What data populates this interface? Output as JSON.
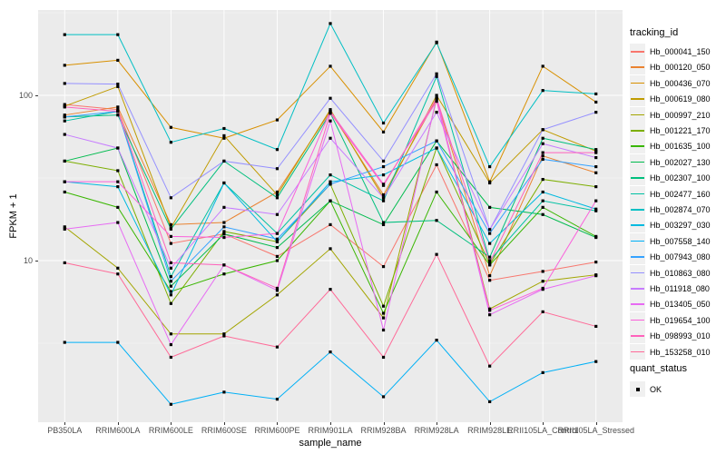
{
  "figure": {
    "background": "#FFFFFF",
    "panel_background": "#EBEBEB",
    "major_grid_color": "#FFFFFF",
    "minor_grid_color": "#F5F5F5",
    "point_color": "#000000",
    "axis_text_color": "#4D4D4D"
  },
  "y_axis": {
    "label": "FPKM + 1",
    "scale": "log10",
    "ticks": [
      {
        "label": "100",
        "value": 100
      },
      {
        "label": "10",
        "value": 10
      }
    ],
    "minor_breaks": [
      316.23,
      31.62,
      3.162
    ]
  },
  "x_axis": {
    "label": "sample_name"
  },
  "legend": {
    "tracking_title": "tracking_id",
    "quant_title": "quant_status",
    "quant_items": [
      {
        "label": "OK",
        "marker": "black-square"
      }
    ]
  },
  "chart_data": {
    "type": "line",
    "title": "",
    "xlabel": "sample_name",
    "ylabel": "FPKM + 1",
    "y_scale": "log10",
    "ylim": [
      1.05,
      324
    ],
    "grid": true,
    "legend_position": "right",
    "point_marker": "black-square",
    "categories": [
      "PB350LA",
      "RRIM600LA",
      "RRIM600LE",
      "RRIM600SE",
      "RRIM600PE",
      "RRIM901LA",
      "RRIM928BA",
      "RRIM928LA",
      "RRIM928LE",
      "RRII105LA_Control",
      "RRII105LA_Stressed"
    ],
    "series": [
      {
        "name": "Hb_000041_150",
        "color": "#F8766D",
        "values": [
          88,
          82,
          12.7,
          14.5,
          10.6,
          16.5,
          9.2,
          38,
          7.6,
          8.6,
          9.8
        ]
      },
      {
        "name": "Hb_000120_050",
        "color": "#EA8331",
        "values": [
          76,
          85,
          16.5,
          17,
          26,
          80,
          25,
          95,
          8.1,
          43,
          34
        ]
      },
      {
        "name": "Hb_000436_070",
        "color": "#D89000",
        "values": [
          152,
          163,
          64,
          55,
          71,
          150,
          60,
          210,
          30,
          150,
          91
        ]
      },
      {
        "name": "Hb_000619_080",
        "color": "#C09B00",
        "values": [
          86,
          113,
          15.8,
          57,
          25,
          82,
          24,
          100,
          29.5,
          62,
          46
        ]
      },
      {
        "name": "Hb_000997_210",
        "color": "#A3A500",
        "values": [
          16,
          9,
          3.6,
          3.6,
          6.2,
          11.8,
          4.5,
          95,
          5.1,
          7.5,
          8.2
        ]
      },
      {
        "name": "Hb_001221_170",
        "color": "#7CAE00",
        "values": [
          40,
          35,
          5.5,
          15,
          13,
          29,
          5.3,
          48,
          9.5,
          31,
          28
        ]
      },
      {
        "name": "Hb_001635_100",
        "color": "#39B600",
        "values": [
          26,
          21,
          6.5,
          8.3,
          10,
          23,
          4.8,
          26,
          9.4,
          21,
          14
        ]
      },
      {
        "name": "Hb_002027_130",
        "color": "#00BB4E",
        "values": [
          40,
          48,
          7,
          14.5,
          12,
          23,
          16.5,
          53,
          21,
          19,
          13.8
        ]
      },
      {
        "name": "Hb_002307_100",
        "color": "#00BF7D",
        "values": [
          74,
          76,
          15.5,
          40,
          24,
          78,
          17,
          17.5,
          10.5,
          55,
          47
        ]
      },
      {
        "name": "Hb_002477_160",
        "color": "#00C1A3",
        "values": [
          70,
          80,
          8,
          29.5,
          14.6,
          33,
          23,
          130,
          10,
          23,
          20
        ]
      },
      {
        "name": "Hb_002874_070",
        "color": "#00BFC4",
        "values": [
          233,
          233,
          52,
          63,
          47,
          272,
          68,
          208,
          37,
          107,
          102
        ]
      },
      {
        "name": "Hb_003297_030",
        "color": "#00BAE0",
        "values": [
          30,
          28,
          6.2,
          29.5,
          13,
          30,
          33,
          48,
          12.7,
          26,
          20.5
        ]
      },
      {
        "name": "Hb_007558_140",
        "color": "#00B0F6",
        "values": [
          3.2,
          3.2,
          1.35,
          1.6,
          1.45,
          2.8,
          1.5,
          3.3,
          1.4,
          2.1,
          2.45
        ]
      },
      {
        "name": "Hb_007943_080",
        "color": "#35A2FF",
        "values": [
          74,
          80,
          7.5,
          16,
          13.5,
          29,
          37,
          53,
          14.6,
          41,
          37
        ]
      },
      {
        "name": "Hb_010863_080",
        "color": "#9590FF",
        "values": [
          118,
          117,
          24,
          40,
          36,
          96,
          40,
          135,
          15.4,
          62,
          79
        ]
      },
      {
        "name": "Hb_011918_080",
        "color": "#C77CFF",
        "values": [
          58,
          48,
          9,
          21,
          19,
          55,
          24,
          79,
          15.4,
          51,
          42
        ]
      },
      {
        "name": "Hb_013405_050",
        "color": "#E76BF3",
        "values": [
          15.5,
          17,
          3.1,
          9.4,
          6.6,
          70,
          3.8,
          97,
          4.7,
          6.7,
          8.1
        ]
      },
      {
        "name": "Hb_019654_100",
        "color": "#FA62DB",
        "values": [
          30,
          30,
          14,
          13.8,
          14.6,
          80,
          29,
          92,
          5.0,
          6.8,
          23
        ]
      },
      {
        "name": "Hb_098993_010",
        "color": "#FF62BC",
        "values": [
          85,
          80,
          9.7,
          9.4,
          6.8,
          78,
          28.5,
          96,
          9.7,
          45,
          45
        ]
      },
      {
        "name": "Hb_153258_010",
        "color": "#FF6A98",
        "values": [
          9.7,
          8.3,
          2.6,
          3.5,
          3.0,
          6.7,
          2.6,
          10.9,
          2.3,
          4.9,
          4.0
        ]
      }
    ]
  }
}
